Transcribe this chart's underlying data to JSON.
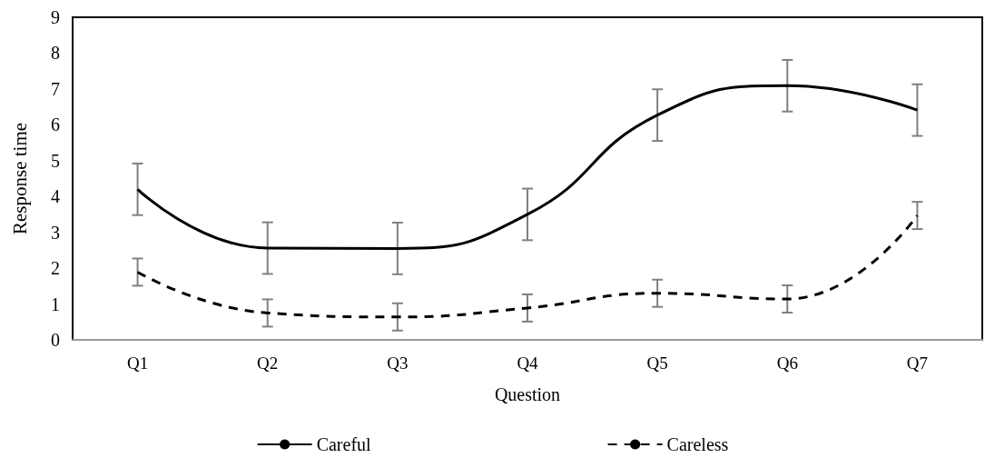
{
  "chart_data": {
    "type": "line",
    "xlabel": "Question",
    "ylabel": "Response time",
    "categories": [
      "Q1",
      "Q2",
      "Q3",
      "Q4",
      "Q5",
      "Q6",
      "Q7"
    ],
    "series": [
      {
        "name": "Careful",
        "color": "#000000",
        "line_style": "solid",
        "values": [
          4.2,
          2.56,
          2.55,
          3.5,
          6.27,
          7.09,
          6.41
        ],
        "errors": [
          0.72,
          0.72,
          0.72,
          0.72,
          0.72,
          0.72,
          0.72
        ]
      },
      {
        "name": "Careless",
        "color": "#000000",
        "line_style": "dashed",
        "values": [
          1.89,
          0.75,
          0.64,
          0.89,
          1.3,
          1.14,
          3.47
        ],
        "errors": [
          0.38,
          0.38,
          0.38,
          0.38,
          0.38,
          0.38,
          0.38
        ]
      }
    ],
    "ylim": [
      0,
      9
    ],
    "yticks": [
      0,
      1,
      2,
      3,
      4,
      5,
      6,
      7,
      8,
      9
    ],
    "grid": false,
    "legend": "bottom",
    "marker": "none"
  }
}
